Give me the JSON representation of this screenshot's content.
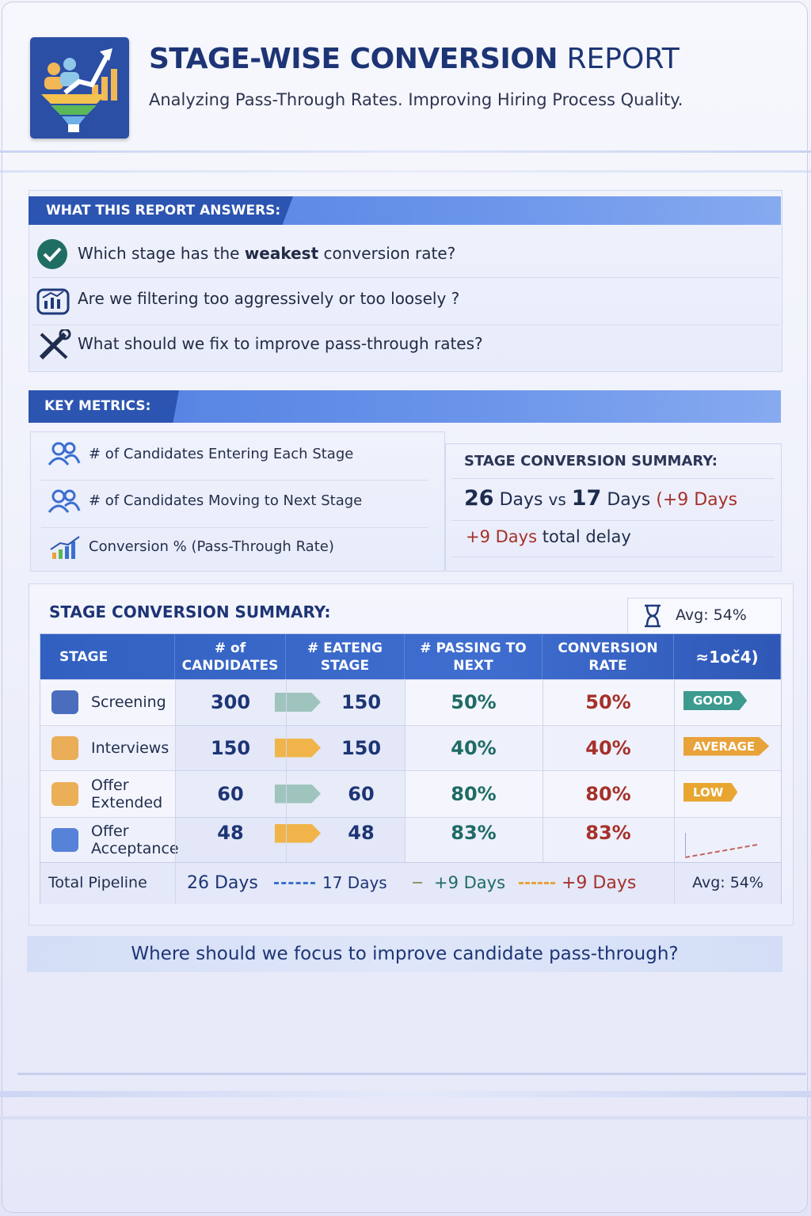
{
  "header": {
    "title_bold": "STAGE-WISE CONVERSION",
    "title_light": "REPORT",
    "subtitle": "Analyzing Pass-Through Rates. Improving Hiring Process Quality."
  },
  "questions": {
    "heading": "WHAT THIS REPORT ANSWERS:",
    "items": [
      {
        "before": "Which stage has the",
        "bold": "weakest",
        "after": "conversion rate?"
      },
      {
        "text": "Are we filtering too aggressively or too loosely ?"
      },
      {
        "text": "What should we fix to improve pass-through rates?"
      }
    ]
  },
  "metrics": {
    "heading": "KEY METRICS:",
    "items": [
      {
        "bold": "# of Candidates",
        "rest": "Entering Each Stage"
      },
      {
        "bold": "# of Candidates",
        "rest": "Moving to Next Stage"
      },
      {
        "bold": "Conversion %",
        "rest": "(Pass-Through Rate)"
      }
    ],
    "summary": {
      "title": "STAGE CONVERSION SUMMARY:",
      "line1": {
        "a": "26",
        "b": "Days",
        "c": "vs",
        "d": "17",
        "e": "Days",
        "f": "(+9 Days"
      },
      "line2": {
        "a": "+9 Days",
        "b": "total delay"
      }
    }
  },
  "table": {
    "title": "STAGE CONVERSION SUMMARY:",
    "avg_badge": "Avg: 54%",
    "columns": [
      "STAGE",
      "# of CANDIDATES",
      "# EATENG STAGE",
      "# PASSING TO NEXT",
      "CONVERSION RATE",
      "≈1oč4)"
    ],
    "rows": [
      {
        "stage": "Screening",
        "candidates": 300,
        "entering": 150,
        "passing": "50%",
        "rate": "50%",
        "status": "GOOD"
      },
      {
        "stage": "Interviews",
        "candidates": 150,
        "entering": 150,
        "passing": "40%",
        "rate": "40%",
        "status": "AVERAGE"
      },
      {
        "stage": "Offer Extended",
        "candidates": 60,
        "entering": 60,
        "passing": "80%",
        "rate": "80%",
        "status": "LOW"
      },
      {
        "stage": "Offer Acceptance",
        "candidates": 48,
        "entering": 48,
        "passing": "83%",
        "rate": "83%"
      }
    ],
    "footer": {
      "label": "Total Pipeline",
      "from": "26 Days",
      "to": "17 Days",
      "delta_a": "+9 Days",
      "delta_b": "+9 Days",
      "avg": "Avg: 54%"
    }
  },
  "question": "Where should we focus to improve candidate pass-through?"
}
